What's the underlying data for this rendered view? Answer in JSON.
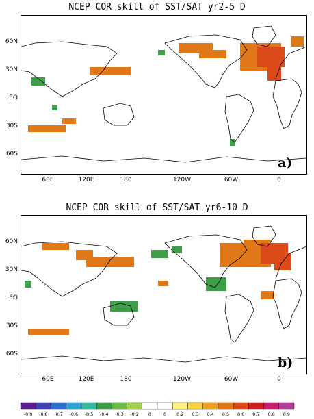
{
  "panels": [
    {
      "id": "a",
      "title": "NCEP COR skill of SST/SAT yr2-5 D",
      "letter": "a)"
    },
    {
      "id": "b",
      "title": "NCEP COR skill of SST/SAT yr6-10 D",
      "letter": "b)"
    }
  ],
  "lat_labels": [
    "60N",
    "30N",
    "EQ",
    "30S",
    "60S"
  ],
  "lon_labels": [
    "60E",
    "120E",
    "180",
    "120W",
    "60W",
    "0"
  ],
  "colorbar": {
    "ticks": [
      "-0.9",
      "-0.8",
      "-0.7",
      "-0.6",
      "-0.5",
      "-0.4",
      "-0.3",
      "-0.2",
      "0",
      "0",
      "0.2",
      "0.3",
      "0.4",
      "0.5",
      "0.6",
      "0.7",
      "0.8",
      "0.9"
    ],
    "colors": [
      "#5b1a8f",
      "#3d3fb5",
      "#2a6fd0",
      "#2ea6d8",
      "#35b9a0",
      "#3e9e4a",
      "#6bbd45",
      "#a3d04a",
      "#ffffff",
      "#ffffff",
      "#fff380",
      "#f5d03a",
      "#f0a020",
      "#e07818",
      "#dc4a1a",
      "#cc2020",
      "#c41e6e",
      "#b0409a"
    ]
  },
  "colors": {
    "land_outline": "#000000",
    "positive": "#e07818",
    "strong_positive": "#dc4a1a",
    "negative": "#3e9e4a"
  }
}
